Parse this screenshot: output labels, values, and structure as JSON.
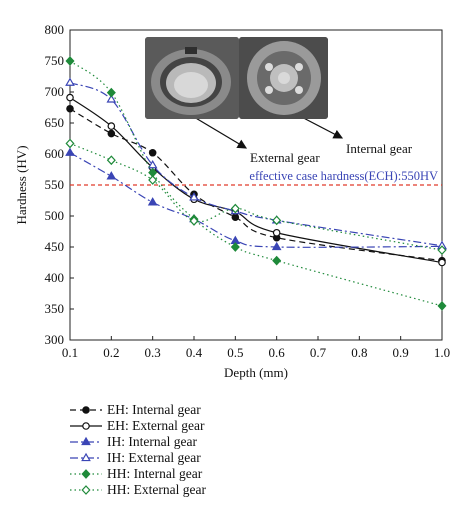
{
  "chart_data": {
    "type": "line",
    "xlabel": "Depth (mm)",
    "ylabel": "Hardness (HV)",
    "xlim": [
      0.1,
      1.0
    ],
    "ylim": [
      300,
      800
    ],
    "xticks": [
      "0.1",
      "0.2",
      "0.3",
      "0.4",
      "0.5",
      "0.6",
      "0.7",
      "0.8",
      "0.9",
      "1.0"
    ],
    "yticks": [
      "300",
      "350",
      "400",
      "450",
      "500",
      "550",
      "600",
      "650",
      "700",
      "750",
      "800"
    ],
    "x": [
      0.1,
      0.2,
      0.3,
      0.4,
      0.5,
      0.6,
      1.0
    ],
    "grid": false,
    "legend_position": "below",
    "series": [
      {
        "name": "EH: Internal gear",
        "values": [
          673,
          633,
          602,
          535,
          498,
          465,
          428
        ],
        "color": "#111111",
        "marker": "filled-circle",
        "line": "dashed"
      },
      {
        "name": "EH: External gear",
        "values": [
          691,
          645,
          578,
          527,
          507,
          473,
          425
        ],
        "color": "#111111",
        "marker": "open-circle",
        "line": "solid"
      },
      {
        "name": "IH: Internal gear",
        "values": [
          602,
          564,
          522,
          495,
          460,
          450,
          451
        ],
        "color": "#3a45b5",
        "marker": "filled-triangle",
        "line": "dash-dot"
      },
      {
        "name": "IH: External gear",
        "values": [
          715,
          688,
          582,
          530,
          508,
          493,
          452
        ],
        "color": "#3a45b5",
        "marker": "open-triangle",
        "line": "dash-dot"
      },
      {
        "name": "HH: Internal gear",
        "values": [
          750,
          699,
          570,
          495,
          450,
          428,
          355
        ],
        "color": "#1f8a3a",
        "marker": "filled-diamond",
        "line": "dotted"
      },
      {
        "name": "HH: External gear",
        "values": [
          617,
          590,
          558,
          492,
          512,
          493,
          445
        ],
        "color": "#1f8a3a",
        "marker": "open-diamond",
        "line": "dotted"
      }
    ],
    "reference_line": {
      "y": 550,
      "label": "effective case hardness(ECH):550HV",
      "color": "#e03a2a"
    },
    "annotations": [
      {
        "text": "External gear",
        "target": "photo-1"
      },
      {
        "text": "Internal gear",
        "target": "photo-2"
      }
    ]
  }
}
